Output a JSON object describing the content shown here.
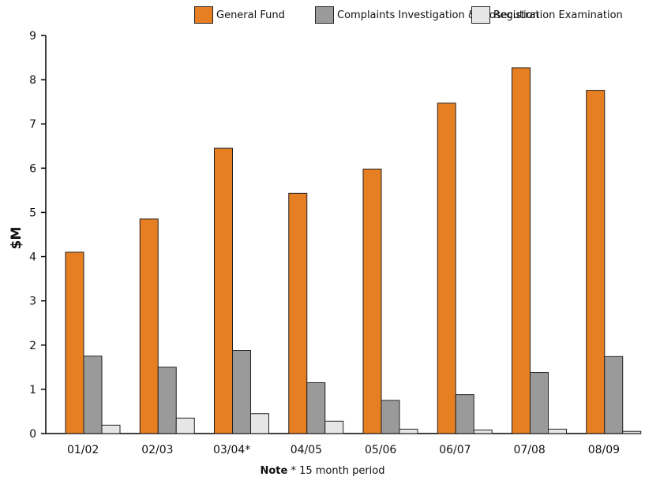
{
  "chart_data": {
    "type": "bar",
    "categories": [
      "01/02",
      "02/03",
      "03/04*",
      "04/05",
      "05/06",
      "06/07",
      "07/08",
      "08/09"
    ],
    "series": [
      {
        "name": "General Fund",
        "color": "#e67e22",
        "values": [
          4.1,
          4.85,
          6.45,
          5.43,
          5.98,
          7.47,
          8.27,
          7.76
        ]
      },
      {
        "name": "Complaints Investigation & Prosecution",
        "color": "#9a9a9a",
        "values": [
          1.75,
          1.5,
          1.88,
          1.15,
          0.75,
          0.88,
          1.38,
          1.74
        ]
      },
      {
        "name": "Registration Examination",
        "color": "#e6e6e6",
        "values": [
          0.19,
          0.35,
          0.45,
          0.28,
          0.1,
          0.08,
          0.1,
          0.05
        ]
      }
    ],
    "ylabel": "$M",
    "xlabel": "",
    "ylim": [
      0,
      9
    ],
    "yticks": [
      "0",
      "1",
      "2",
      "3",
      "4",
      "5",
      "6",
      "7",
      "8",
      "9"
    ],
    "grid": false,
    "legend_position": "top"
  },
  "note": {
    "bold": "Note",
    "text": " * 15 month period"
  }
}
